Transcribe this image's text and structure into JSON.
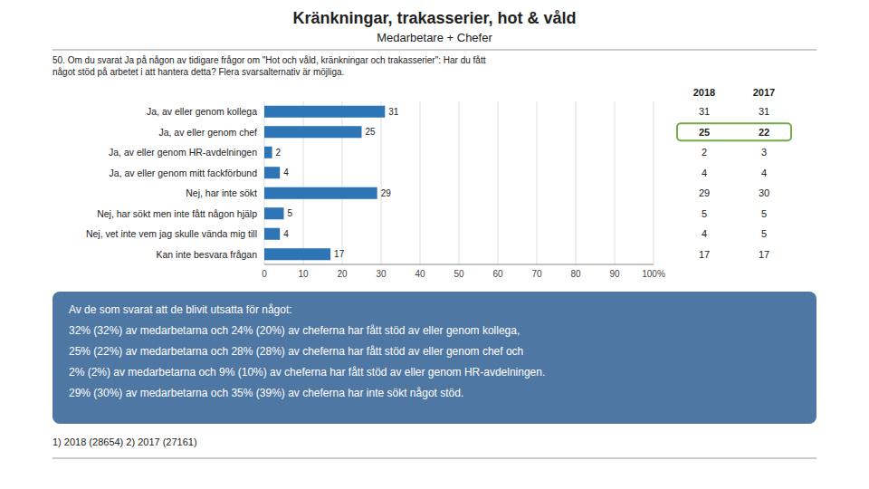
{
  "chart_data": {
    "type": "bar",
    "orientation": "horizontal",
    "title": "Kränkningar, trakasserier, hot & våld",
    "subtitle": "Medarbetare + Chefer",
    "question": "50. Om du svarat Ja på någon av tidigare frågor om \"Hot och våld, kränkningar och trakasserier\": Har du fått\nnågot stöd på arbetet i att hantera detta? Flera svarsalternativ är möjliga.",
    "categories": [
      "Ja, av eller genom kollega",
      "Ja, av eller genom chef",
      "Ja, av eller genom HR-avdelningen",
      "Ja, av eller genom mitt fackförbund",
      "Nej, har inte sökt",
      "Nej, har sökt men inte fått någon hjälp",
      "Nej, vet inte vem jag skulle vända mig till",
      "Kan inte besvara frågan"
    ],
    "values": [
      31,
      25,
      2,
      4,
      29,
      5,
      4,
      17
    ],
    "color": "#2e75b6",
    "data_labels": true,
    "xlim": [
      0,
      100
    ],
    "xticks": [
      0,
      10,
      20,
      30,
      40,
      50,
      60,
      70,
      80,
      90,
      {
        "value": 100,
        "label": "100%"
      }
    ],
    "grid": true,
    "table": {
      "columns": [
        {
          "name": "2018",
          "values": [
            31,
            25,
            2,
            4,
            29,
            5,
            4,
            17
          ]
        },
        {
          "name": "2017",
          "values": [
            31,
            22,
            3,
            4,
            30,
            5,
            5,
            17
          ]
        }
      ],
      "highlight": "Ja, av eller genom chef",
      "highlight_color": "#70ad47"
    },
    "summary": "Av de som svarat att de blivit utsatta för något:\n32% (32%) av medarbetarna och 24% (20%) av cheferna har fått stöd av eller genom kollega,\n25% (22%) av medarbetarna och 28% (28%) av cheferna har fått stöd av eller genom chef och\n2% (2%) av medarbetarna och 9% (10%) av cheferna har fått stöd av eller genom HR-avdelningen.\n29% (30%) av medarbetarna och 35% (39%) av cheferna har inte sökt något stöd.",
    "footnote": "1) 2018 (28654)   2) 2017 (27161)"
  }
}
